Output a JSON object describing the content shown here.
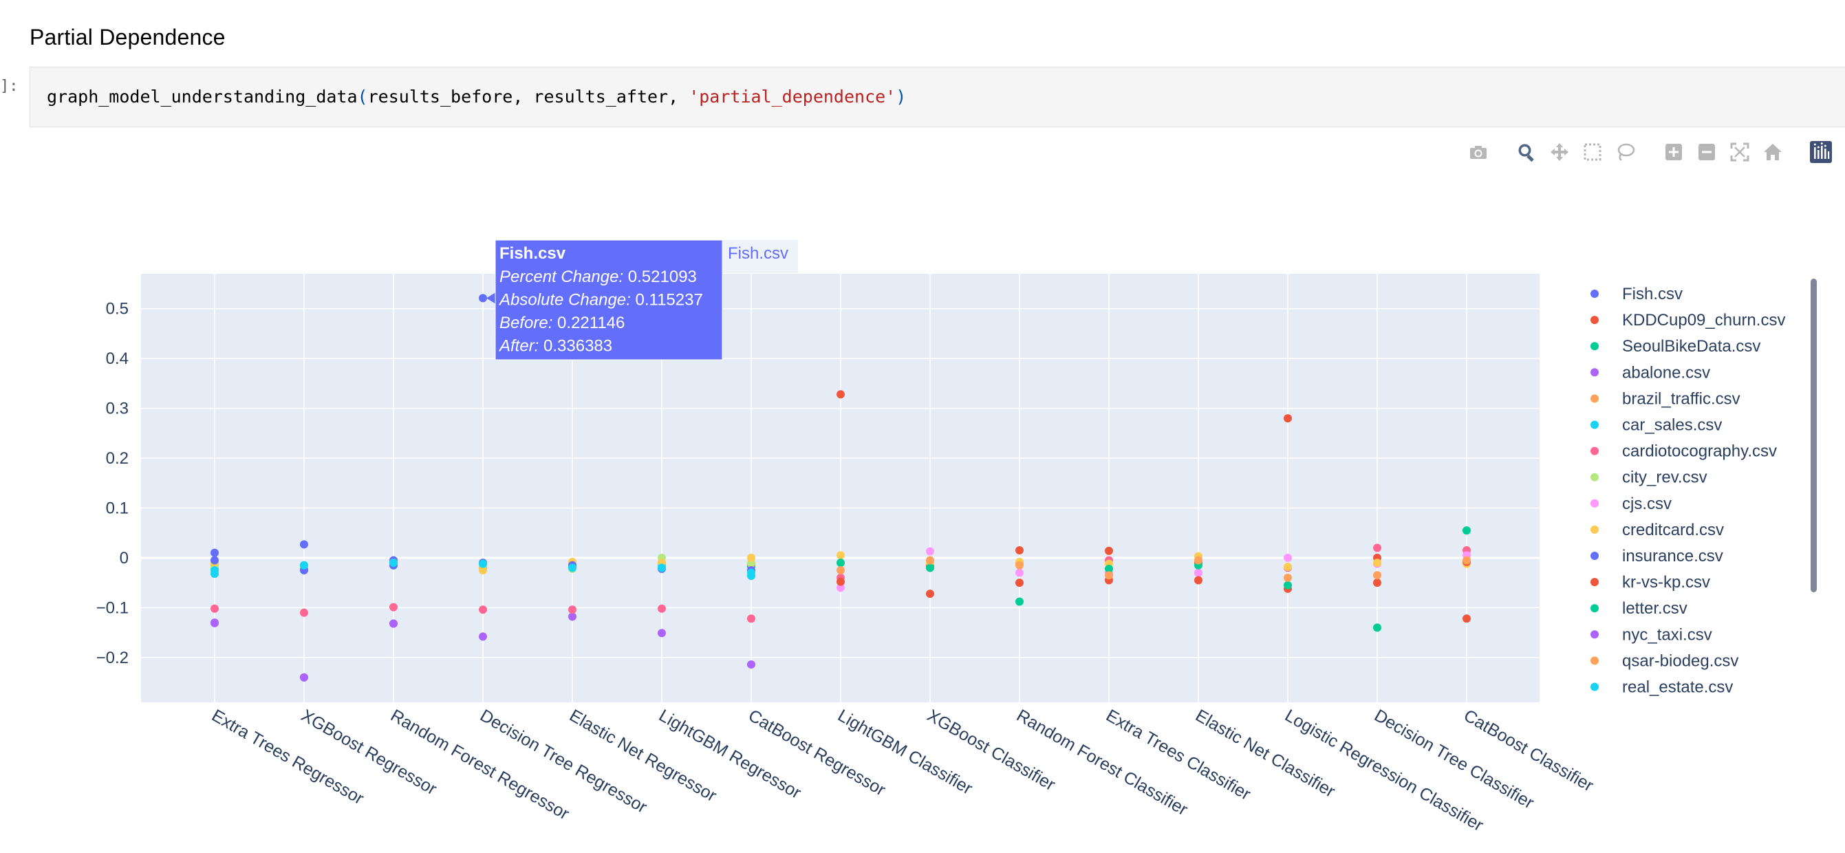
{
  "page": {
    "heading": "Partial Dependence",
    "prompt": "]:",
    "code": {
      "fn": "graph_model_understanding_data",
      "open": "(",
      "args": "results_before, results_after, ",
      "str": "'partial_dependence'",
      "close": ")"
    }
  },
  "modebar": {
    "buttons": [
      {
        "name": "camera-icon",
        "group": 0
      },
      {
        "name": "zoom-icon",
        "group": 1,
        "active": true
      },
      {
        "name": "pan-icon",
        "group": 1
      },
      {
        "name": "box-select-icon",
        "group": 1
      },
      {
        "name": "lasso-select-icon",
        "group": 1
      },
      {
        "name": "zoom-in-icon",
        "group": 2
      },
      {
        "name": "zoom-out-icon",
        "group": 2
      },
      {
        "name": "autoscale-icon",
        "group": 2
      },
      {
        "name": "reset-axes-icon",
        "group": 2
      },
      {
        "name": "plotly-logo-icon",
        "group": 3
      }
    ]
  },
  "colors": {
    "plot_bg": "#e5ecf6",
    "grid": "#ffffff",
    "axis_text": "#2a3f5f",
    "hover_bg": "#636efa"
  },
  "chart_data": {
    "type": "scatter",
    "title": "",
    "xlabel": "",
    "ylabel": "",
    "ylim": [
      -0.29,
      0.57
    ],
    "yticks": [
      0.5,
      0.4,
      0.3,
      0.2,
      0.1,
      0,
      -0.1,
      -0.2
    ],
    "ytick_labels": [
      "0.5",
      "0.4",
      "0.3",
      "0.2",
      "0.1",
      "0",
      "−0.1",
      "−0.2"
    ],
    "grid": true,
    "legend_position": "right",
    "categories": [
      "Extra Trees Regressor",
      "XGBoost Regressor",
      "Random Forest Regressor",
      "Decision Tree Regressor",
      "Elastic Net Regressor",
      "LightGBM Regressor",
      "CatBoost Regressor",
      "LightGBM Classifier",
      "XGBoost Classifier",
      "Random Forest Classifier",
      "Extra Trees Classifier",
      "Elastic Net Classifier",
      "Logistic Regression Classifier",
      "Decision Tree Classifier",
      "CatBoost Classifier"
    ],
    "series": [
      {
        "name": "Fish.csv",
        "color": "#636efa",
        "points": [
          [
            0,
            0.01
          ],
          [
            1,
            0.027
          ],
          [
            2,
            -0.005
          ],
          [
            3,
            0.521093
          ],
          [
            4,
            -0.012
          ],
          [
            5,
            -0.012
          ],
          [
            6,
            -0.017
          ]
        ]
      },
      {
        "name": "KDDCup09_churn.csv",
        "color": "#EF553B",
        "points": [
          [
            7,
            0.328
          ],
          [
            8,
            -0.015
          ],
          [
            9,
            0.015
          ],
          [
            10,
            0.014
          ],
          [
            11,
            -0.01
          ],
          [
            12,
            0.28
          ],
          [
            13,
            0.0
          ],
          [
            14,
            -0.122
          ]
        ]
      },
      {
        "name": "SeoulBikeData.csv",
        "color": "#00cc96",
        "points": [
          [
            0,
            -0.02
          ],
          [
            1,
            -0.015
          ],
          [
            2,
            -0.015
          ],
          [
            3,
            -0.015
          ],
          [
            4,
            -0.018
          ],
          [
            5,
            -0.01
          ],
          [
            6,
            -0.015
          ]
        ]
      },
      {
        "name": "abalone.csv",
        "color": "#ab63fa",
        "points": [
          [
            0,
            -0.131
          ],
          [
            1,
            -0.24
          ],
          [
            2,
            -0.132
          ],
          [
            3,
            -0.158
          ],
          [
            4,
            -0.118
          ],
          [
            5,
            -0.151
          ],
          [
            6,
            -0.214
          ]
        ]
      },
      {
        "name": "brazil_traffic.csv",
        "color": "#FFA15A",
        "points": [
          [
            0,
            -0.015
          ],
          [
            1,
            -0.02
          ],
          [
            2,
            -0.01
          ],
          [
            3,
            -0.02
          ],
          [
            4,
            -0.012
          ],
          [
            5,
            -0.01
          ],
          [
            6,
            -0.012
          ]
        ]
      },
      {
        "name": "car_sales.csv",
        "color": "#19d3f3",
        "points": [
          [
            0,
            -0.032
          ],
          [
            1,
            -0.02
          ],
          [
            2,
            -0.01
          ],
          [
            3,
            -0.015
          ],
          [
            4,
            -0.018
          ],
          [
            5,
            -0.015
          ],
          [
            6,
            -0.036
          ]
        ]
      },
      {
        "name": "cardiotocography.csv",
        "color": "#FF6692",
        "points": [
          [
            0,
            -0.102
          ],
          [
            1,
            -0.11
          ],
          [
            2,
            -0.099
          ],
          [
            3,
            -0.104
          ],
          [
            4,
            -0.104
          ],
          [
            5,
            -0.102
          ],
          [
            6,
            -0.122
          ],
          [
            7,
            -0.04
          ],
          [
            8,
            -0.02
          ],
          [
            9,
            -0.01
          ],
          [
            10,
            -0.005
          ],
          [
            11,
            -0.03
          ],
          [
            12,
            -0.02
          ],
          [
            13,
            0.02
          ],
          [
            14,
            0.015
          ]
        ]
      },
      {
        "name": "city_rev.csv",
        "color": "#B6E880",
        "points": [
          [
            0,
            -0.018
          ],
          [
            1,
            -0.018
          ],
          [
            2,
            -0.01
          ],
          [
            3,
            -0.015
          ],
          [
            4,
            -0.022
          ],
          [
            5,
            0.0
          ],
          [
            6,
            -0.01
          ]
        ]
      },
      {
        "name": "cjs.csv",
        "color": "#FF97FF",
        "points": [
          [
            7,
            -0.06
          ],
          [
            8,
            0.013
          ],
          [
            9,
            -0.03
          ],
          [
            10,
            -0.03
          ],
          [
            11,
            -0.03
          ],
          [
            12,
            0.0
          ],
          [
            13,
            -0.012
          ],
          [
            14,
            0.005
          ]
        ]
      },
      {
        "name": "creditcard.csv",
        "color": "#FECB52",
        "points": [
          [
            0,
            -0.01
          ],
          [
            1,
            -0.025
          ],
          [
            2,
            -0.012
          ],
          [
            3,
            -0.025
          ],
          [
            4,
            -0.008
          ],
          [
            5,
            -0.01
          ],
          [
            6,
            0.0
          ],
          [
            7,
            0.005
          ],
          [
            8,
            -0.01
          ],
          [
            9,
            -0.008
          ],
          [
            10,
            -0.012
          ],
          [
            11,
            0.003
          ],
          [
            12,
            -0.018
          ],
          [
            13,
            -0.01
          ],
          [
            14,
            -0.012
          ]
        ]
      },
      {
        "name": "insurance.csv",
        "color": "#636efa",
        "points": [
          [
            0,
            -0.005
          ],
          [
            1,
            -0.025
          ],
          [
            2,
            -0.015
          ],
          [
            3,
            -0.01
          ],
          [
            4,
            -0.015
          ],
          [
            5,
            -0.022
          ],
          [
            6,
            -0.025
          ]
        ]
      },
      {
        "name": "kr-vs-kp.csv",
        "color": "#EF553B",
        "points": [
          [
            7,
            -0.048
          ],
          [
            8,
            -0.072
          ],
          [
            9,
            -0.05
          ],
          [
            10,
            -0.045
          ],
          [
            11,
            -0.045
          ],
          [
            12,
            -0.062
          ],
          [
            13,
            -0.05
          ],
          [
            14,
            -0.008
          ]
        ]
      },
      {
        "name": "letter.csv",
        "color": "#00cc96",
        "points": [
          [
            7,
            -0.01
          ],
          [
            8,
            -0.02
          ],
          [
            9,
            -0.088
          ],
          [
            10,
            -0.022
          ],
          [
            11,
            -0.015
          ],
          [
            12,
            -0.055
          ],
          [
            13,
            -0.14
          ],
          [
            14,
            0.055
          ]
        ]
      },
      {
        "name": "nyc_taxi.csv",
        "color": "#ab63fa",
        "points": [
          [
            0,
            -0.13
          ],
          [
            1,
            -0.24
          ],
          [
            2,
            -0.132
          ]
        ]
      },
      {
        "name": "qsar-biodeg.csv",
        "color": "#FFA15A",
        "points": [
          [
            7,
            -0.025
          ],
          [
            8,
            -0.005
          ],
          [
            9,
            -0.015
          ],
          [
            10,
            -0.035
          ],
          [
            11,
            -0.005
          ],
          [
            12,
            -0.04
          ],
          [
            13,
            -0.035
          ],
          [
            14,
            -0.005
          ]
        ]
      },
      {
        "name": "real_estate.csv",
        "color": "#19d3f3",
        "points": [
          [
            0,
            -0.025
          ],
          [
            1,
            -0.015
          ],
          [
            2,
            -0.01
          ],
          [
            3,
            -0.012
          ],
          [
            4,
            -0.02
          ],
          [
            5,
            -0.02
          ],
          [
            6,
            -0.03
          ]
        ]
      }
    ],
    "hover": {
      "name": "Fish.csv",
      "title": "Fish.csv",
      "category_index": 3,
      "y": 0.521093,
      "rows": [
        {
          "label": "Percent Change:",
          "value": " 0.521093"
        },
        {
          "label": "Absolute Change:",
          "value": " 0.115237"
        },
        {
          "label": "Before:",
          "value": " 0.221146"
        },
        {
          "label": "After:",
          "value": " 0.336383"
        }
      ]
    }
  }
}
